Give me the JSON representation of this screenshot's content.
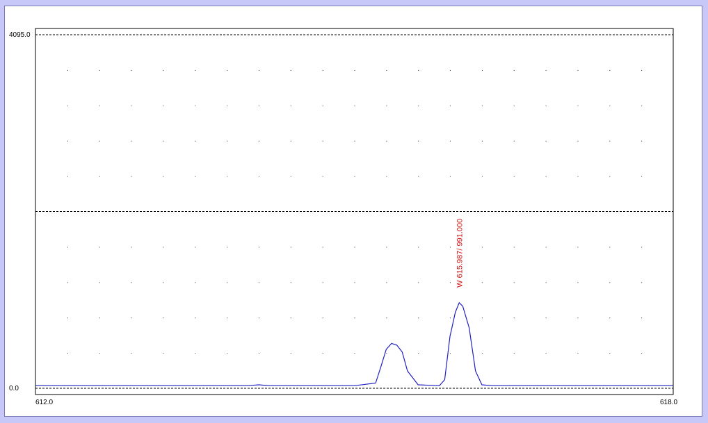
{
  "chart_data": {
    "type": "line",
    "xlim": [
      612.0,
      618.0
    ],
    "ylim": [
      0.0,
      4095.0
    ],
    "x_tick_labels": [
      "612.0",
      "618.0"
    ],
    "y_tick_labels": [
      "4095.0",
      "0.0"
    ],
    "grid": "dotted",
    "series": [
      {
        "color": "#2020c0",
        "points": [
          [
            612.0,
            30
          ],
          [
            614.0,
            30
          ],
          [
            614.1,
            40
          ],
          [
            614.2,
            30
          ],
          [
            615.0,
            30
          ],
          [
            615.2,
            60
          ],
          [
            615.25,
            250
          ],
          [
            615.3,
            450
          ],
          [
            615.35,
            520
          ],
          [
            615.4,
            500
          ],
          [
            615.45,
            420
          ],
          [
            615.5,
            200
          ],
          [
            615.6,
            40
          ],
          [
            615.8,
            30
          ],
          [
            615.85,
            100
          ],
          [
            615.9,
            600
          ],
          [
            615.95,
            880
          ],
          [
            615.987,
            991
          ],
          [
            616.02,
            950
          ],
          [
            616.08,
            700
          ],
          [
            616.14,
            200
          ],
          [
            616.2,
            40
          ],
          [
            616.3,
            30
          ],
          [
            618.0,
            30
          ]
        ]
      }
    ],
    "annotations": [
      {
        "text": "W 615.987/ 991.000",
        "x": 615.987,
        "y": 991.0,
        "color": "#d01010"
      }
    ]
  }
}
